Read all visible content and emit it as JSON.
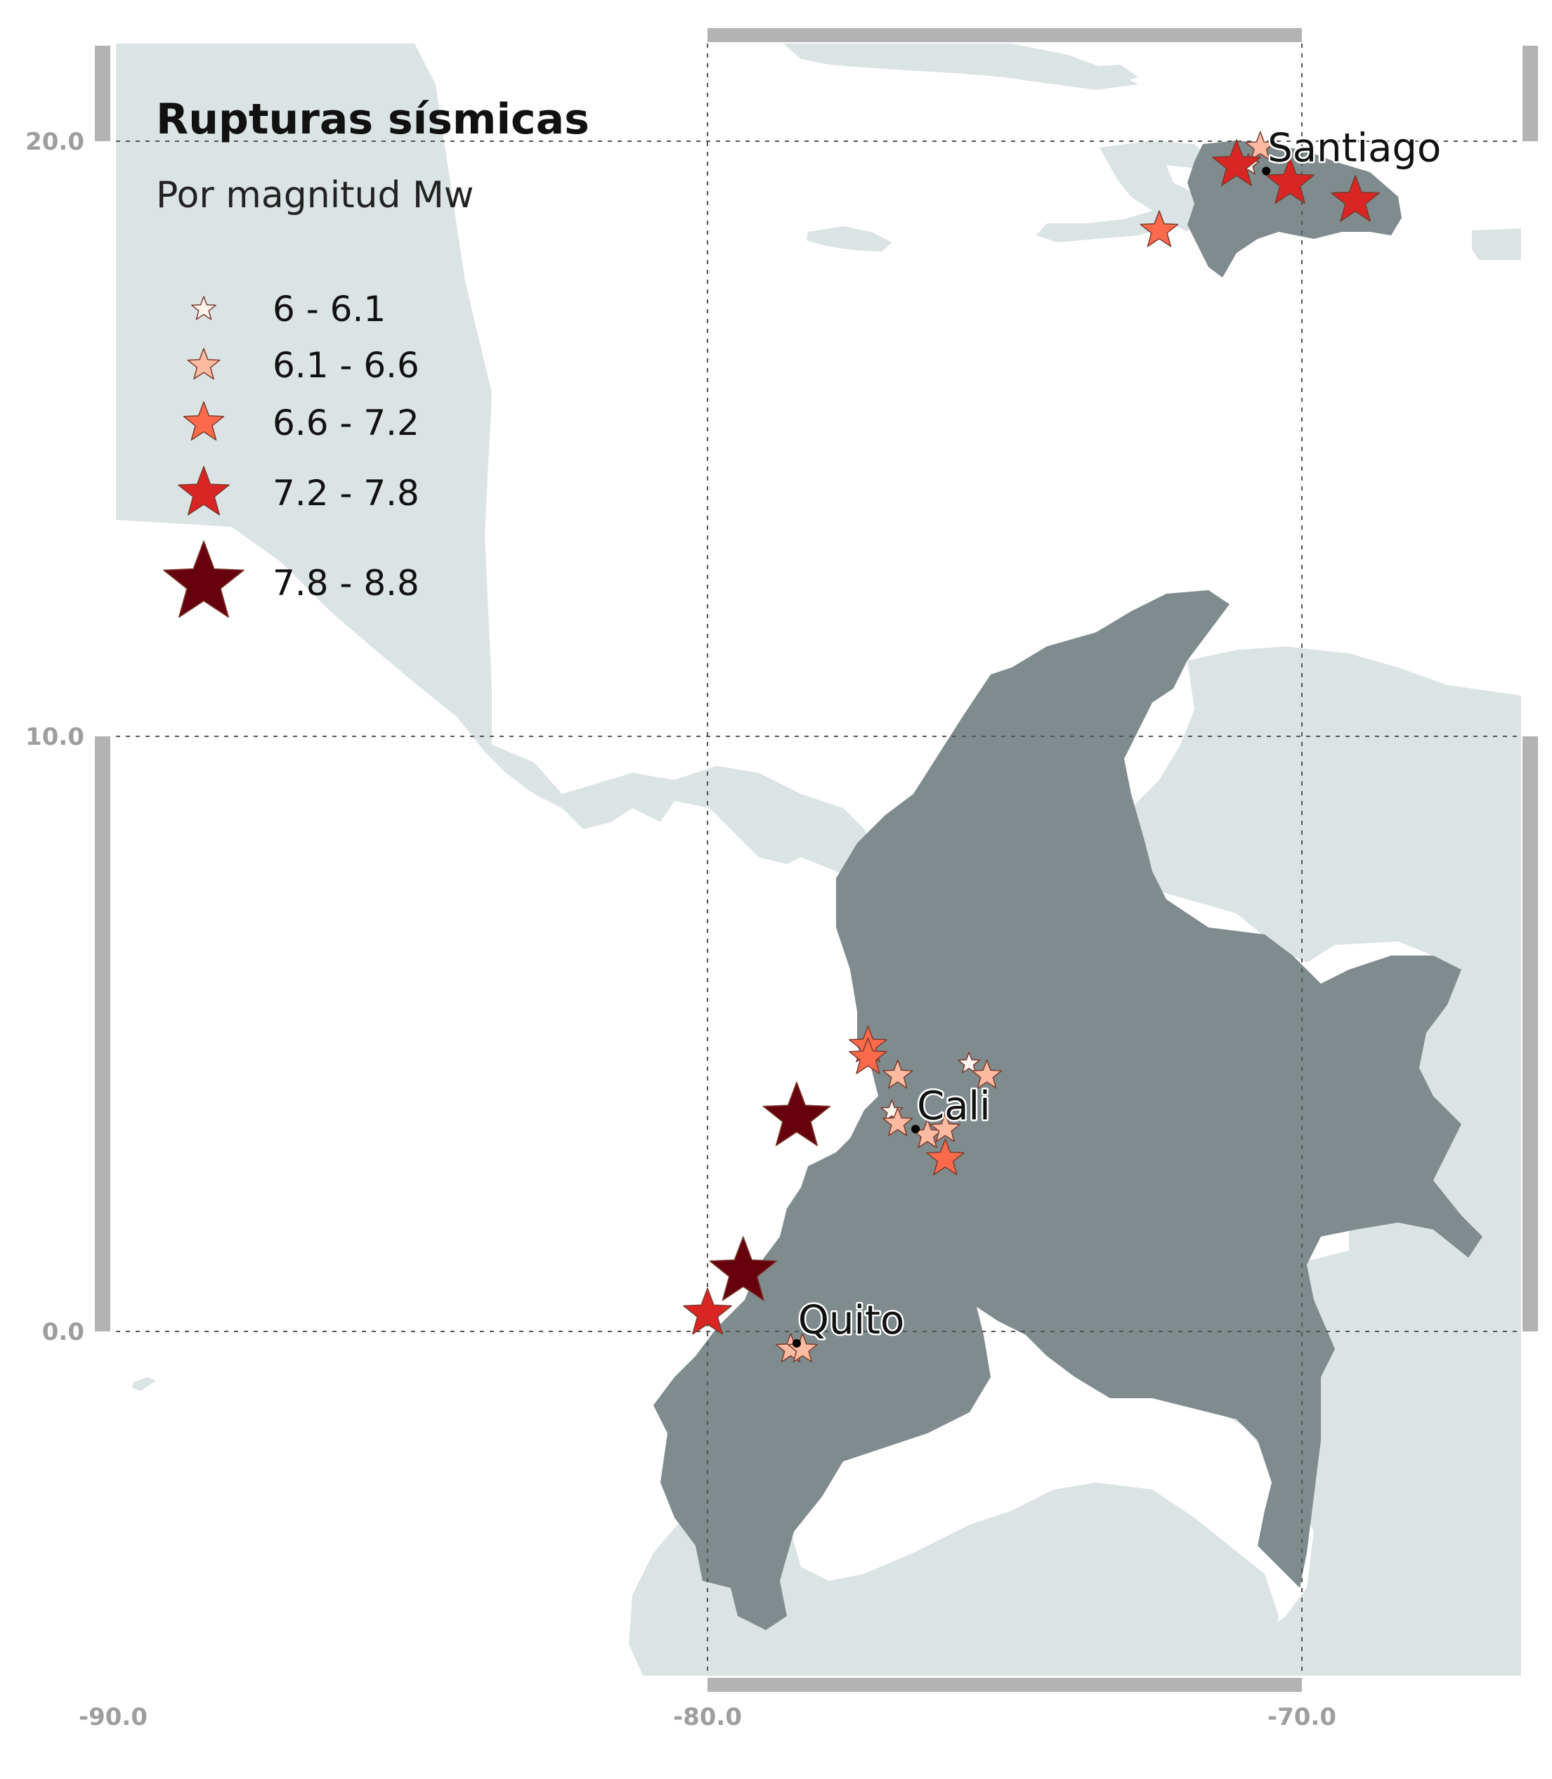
{
  "title": "Rupturas sísmicas",
  "subtitle": "Por magnitud Mw",
  "axes": {
    "x_ticks": [
      {
        "value": -90,
        "label": "-90.0"
      },
      {
        "value": -80,
        "label": "-80.0"
      },
      {
        "value": -70,
        "label": "-70.0"
      }
    ],
    "y_ticks": [
      {
        "value": 20,
        "label": "20.0"
      },
      {
        "value": 10,
        "label": "10.0"
      },
      {
        "value": 0,
        "label": "0.0"
      }
    ],
    "lon_range": [
      -91.5,
      -66.2
    ],
    "lat_range": [
      -5.5,
      22.3
    ]
  },
  "legend": {
    "items": [
      {
        "label": "6 - 6.1",
        "color": "#fff5f0"
      },
      {
        "label": "6.1 - 6.6",
        "color": "#fcbba1"
      },
      {
        "label": "6.6 - 7.2",
        "color": "#fb6a4a"
      },
      {
        "label": "7.2 - 7.8",
        "color": "#d92523"
      },
      {
        "label": "7.8 - 8.8",
        "color": "#67000d"
      }
    ]
  },
  "colors": {
    "highlight_land": "#7f8b8d",
    "background_land": "#dce3e4",
    "frame": "#b3b3b3",
    "star_stroke": "#7a3b2e"
  },
  "cities": [
    {
      "name": "Santiago",
      "lon": -70.6,
      "lat": 19.5
    },
    {
      "name": "Cali",
      "lon": -76.5,
      "lat": 3.4
    },
    {
      "name": "Quito",
      "lon": -78.5,
      "lat": -0.2
    }
  ],
  "chart_data": {
    "type": "scatter",
    "title": "Rupturas sísmicas",
    "subtitle": "Por magnitud Mw",
    "xlabel": "",
    "ylabel": "",
    "xlim": [
      -91.5,
      -66.2
    ],
    "ylim": [
      -5.5,
      22.3
    ],
    "grid": true,
    "legend_position": "top-left",
    "series": [
      {
        "name": "6 - 6.1",
        "points": [
          [
            -70.9,
            19.6
          ],
          [
            -75.6,
            4.5
          ],
          [
            -76.9,
            3.7
          ]
        ]
      },
      {
        "name": "6.1 - 6.6",
        "points": [
          [
            -70.7,
            19.9
          ],
          [
            -76.8,
            4.3
          ],
          [
            -75.3,
            4.3
          ],
          [
            -76.8,
            3.5
          ],
          [
            -76.3,
            3.3
          ],
          [
            -76.0,
            3.4
          ],
          [
            -78.6,
            -0.3
          ],
          [
            -78.4,
            -0.3
          ]
        ]
      },
      {
        "name": "6.6 - 7.2",
        "points": [
          [
            -72.4,
            18.5
          ],
          [
            -77.3,
            4.8
          ],
          [
            -77.3,
            4.6
          ],
          [
            -76.0,
            2.9
          ]
        ]
      },
      {
        "name": "7.2 - 7.8",
        "points": [
          [
            -71.1,
            19.6
          ],
          [
            -70.2,
            19.3
          ],
          [
            -69.1,
            19.0
          ],
          [
            -80.0,
            0.3
          ]
        ]
      },
      {
        "name": "7.8 - 8.8",
        "points": [
          [
            -78.5,
            3.6
          ],
          [
            -79.4,
            1.0
          ]
        ]
      }
    ]
  }
}
